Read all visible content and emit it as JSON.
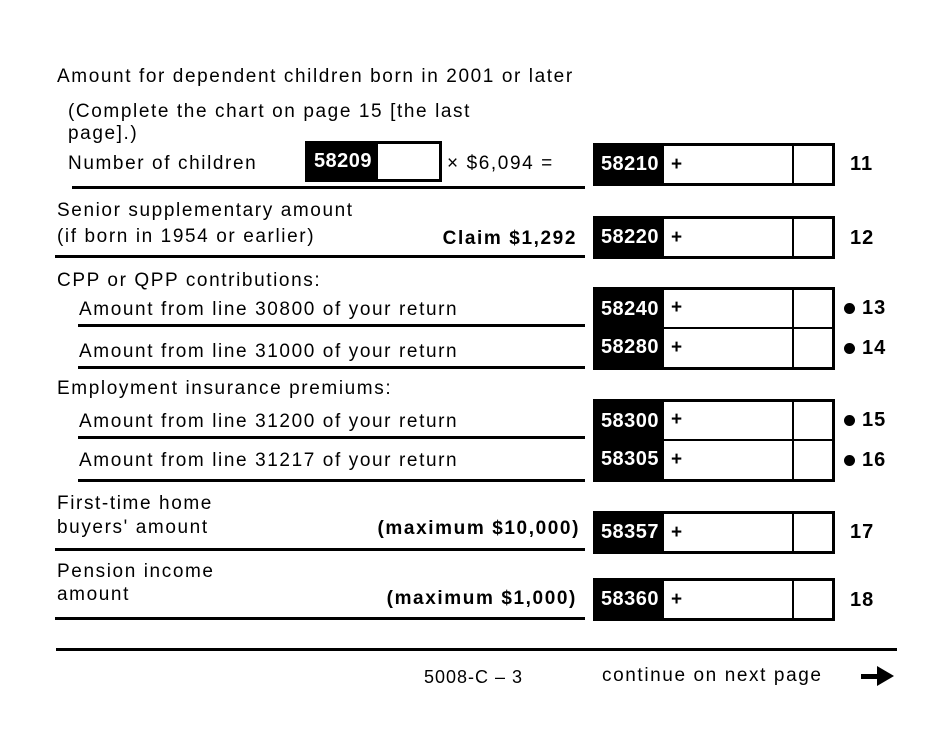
{
  "form": {
    "dependent_children": {
      "title": "Amount for dependent children born in 2001 or later",
      "note_line1": "(Complete the chart on page 15 [the last",
      "note_line2": "page].)",
      "label": "Number of children",
      "field_code": "58209",
      "field_value": "",
      "multiplier": "× $6,094 =",
      "result_code": "58210",
      "result_value": "",
      "line_no": "11"
    },
    "senior_supplementary": {
      "label_line1": "Senior supplementary amount",
      "label_line2": "(if born in 1954 or earlier)",
      "claim": "Claim $1,292",
      "code": "58220",
      "value": "",
      "line_no": "12"
    },
    "cpp_qpp": {
      "header": "CPP or QPP contributions:",
      "rows": [
        {
          "label": "Amount from line 30800 of your return",
          "code": "58240",
          "value": "",
          "line_no": "13"
        },
        {
          "label": "Amount from line 31000 of your return",
          "code": "58280",
          "value": "",
          "line_no": "14"
        }
      ]
    },
    "ei": {
      "header": "Employment insurance premiums:",
      "rows": [
        {
          "label": "Amount from line 31200 of your return",
          "code": "58300",
          "value": "",
          "line_no": "15"
        },
        {
          "label": "Amount from line 31217 of your return",
          "code": "58305",
          "value": "",
          "line_no": "16"
        }
      ]
    },
    "fthb": {
      "label_line1": "First-time home",
      "label_line2": "buyers' amount",
      "max": "(maximum $10,000)",
      "code": "58357",
      "value": "",
      "line_no": "17"
    },
    "pension": {
      "label_line1": "Pension income",
      "label_line2": "amount",
      "max": "(maximum $1,000)",
      "code": "58360",
      "value": "",
      "line_no": "18"
    },
    "plus_sign": "+",
    "footer": {
      "page_code": "5008-C – 3",
      "continue_text": "continue on next page"
    },
    "colors": {
      "ink": "#000000",
      "paper": "#ffffff"
    }
  }
}
